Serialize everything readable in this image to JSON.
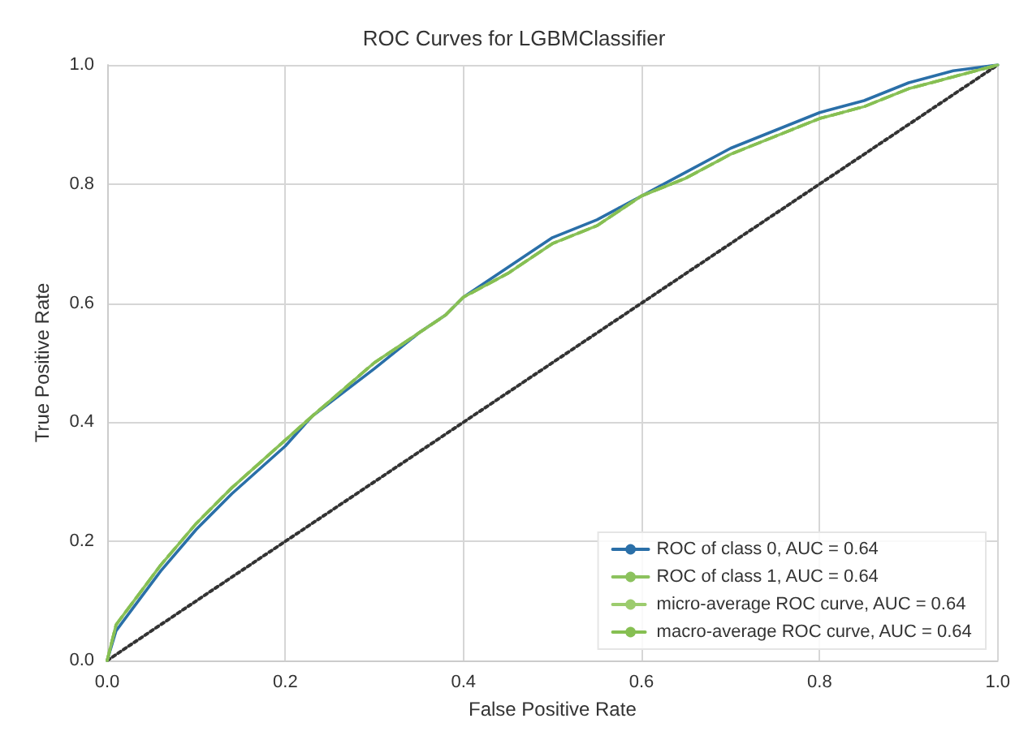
{
  "chart_data": {
    "type": "line",
    "title": "ROC Curves for LGBMClassifier",
    "xlabel": "False Positive Rate",
    "ylabel": "True Positive Rate",
    "xlim": [
      0,
      1
    ],
    "ylim": [
      0,
      1
    ],
    "xticks": [
      {
        "value": 0,
        "label": "0.0"
      },
      {
        "value": 0.2,
        "label": "0.2"
      },
      {
        "value": 0.4,
        "label": "0.4"
      },
      {
        "value": 0.6,
        "label": "0.6"
      },
      {
        "value": 0.8,
        "label": "0.8"
      },
      {
        "value": 1,
        "label": "1.0"
      }
    ],
    "yticks": [
      {
        "value": 0,
        "label": "0.0"
      },
      {
        "value": 0.2,
        "label": "0.2"
      },
      {
        "value": 0.4,
        "label": "0.4"
      },
      {
        "value": 0.6,
        "label": "0.6"
      },
      {
        "value": 0.8,
        "label": "0.8"
      },
      {
        "value": 1,
        "label": "1.0"
      }
    ],
    "grid": true,
    "legend": "bottom right",
    "marker": "none",
    "x": [
      0,
      0.01,
      0.03,
      0.06,
      0.1,
      0.14,
      0.2,
      0.23,
      0.3,
      0.35,
      0.38,
      0.4,
      0.45,
      0.5,
      0.55,
      0.6,
      0.65,
      0.7,
      0.75,
      0.8,
      0.85,
      0.9,
      0.95,
      1
    ],
    "series": [
      {
        "name": "ROC of class 0, AUC = 0.64",
        "color": "#2a6fa8",
        "line_style": "solid",
        "values": [
          0,
          0.05,
          0.09,
          0.15,
          0.22,
          0.28,
          0.36,
          0.41,
          0.49,
          0.55,
          0.58,
          0.61,
          0.66,
          0.71,
          0.74,
          0.78,
          0.82,
          0.86,
          0.89,
          0.92,
          0.94,
          0.97,
          0.99,
          1
        ]
      },
      {
        "name": "ROC of class 1, AUC = 0.64",
        "color": "#8cc25e",
        "line_style": "solid",
        "values": [
          0,
          0.06,
          0.1,
          0.16,
          0.23,
          0.29,
          0.37,
          0.41,
          0.5,
          0.55,
          0.58,
          0.61,
          0.65,
          0.7,
          0.73,
          0.78,
          0.81,
          0.85,
          0.88,
          0.91,
          0.93,
          0.96,
          0.98,
          1
        ]
      },
      {
        "name": "micro-average ROC curve, AUC = 0.64",
        "color": "#9ccc6e",
        "line_style": "dashed",
        "values": [
          0,
          0.06,
          0.1,
          0.16,
          0.23,
          0.29,
          0.37,
          0.41,
          0.5,
          0.55,
          0.58,
          0.61,
          0.65,
          0.7,
          0.73,
          0.78,
          0.81,
          0.85,
          0.88,
          0.91,
          0.93,
          0.96,
          0.98,
          1
        ]
      },
      {
        "name": "macro-average ROC curve, AUC = 0.64",
        "color": "#86bf52",
        "line_style": "dashed",
        "values": [
          0,
          0.06,
          0.1,
          0.16,
          0.23,
          0.29,
          0.37,
          0.41,
          0.5,
          0.55,
          0.58,
          0.61,
          0.65,
          0.7,
          0.73,
          0.78,
          0.81,
          0.85,
          0.88,
          0.91,
          0.93,
          0.96,
          0.98,
          1
        ]
      },
      {
        "color": "#333333",
        "line_style": "dotted",
        "x": [
          0,
          1
        ],
        "values": [
          0,
          1
        ]
      }
    ]
  }
}
